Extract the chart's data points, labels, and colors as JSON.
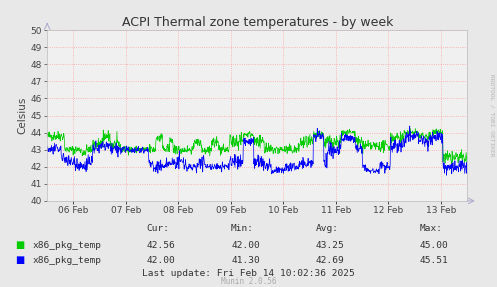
{
  "title": "ACPI Thermal zone temperatures - by week",
  "ylabel": "Celsius",
  "ylim": [
    40,
    50
  ],
  "yticks": [
    40,
    41,
    42,
    43,
    44,
    45,
    46,
    47,
    48,
    49,
    50
  ],
  "xlim": [
    0,
    8
  ],
  "xtick_labels": [
    "06 Feb",
    "07 Feb",
    "08 Feb",
    "09 Feb",
    "10 Feb",
    "11 Feb",
    "12 Feb",
    "13 Feb"
  ],
  "xtick_positions": [
    0.5,
    1.5,
    2.5,
    3.5,
    4.5,
    5.5,
    6.5,
    7.5
  ],
  "background_color": "#e8e8e8",
  "plot_bg_color": "#f0f0f0",
  "grid_color": "#ff9999",
  "line1_color": "#00cc00",
  "line2_color": "#0000ff",
  "title_color": "#333333",
  "label_color": "#444444",
  "legend_label1": "x86_pkg_temp",
  "legend_label2": "x86_pkg_temp",
  "cur1": "42.56",
  "min1": "42.00",
  "avg1": "43.25",
  "max1": "45.00",
  "cur2": "42.00",
  "min2": "41.30",
  "avg2": "42.69",
  "max2": "45.51",
  "footer": "Last update: Fri Feb 14 10:02:36 2025",
  "munin_version": "Munin 2.0.56",
  "watermark": "RRDTOOL / TOBI OETIKER"
}
